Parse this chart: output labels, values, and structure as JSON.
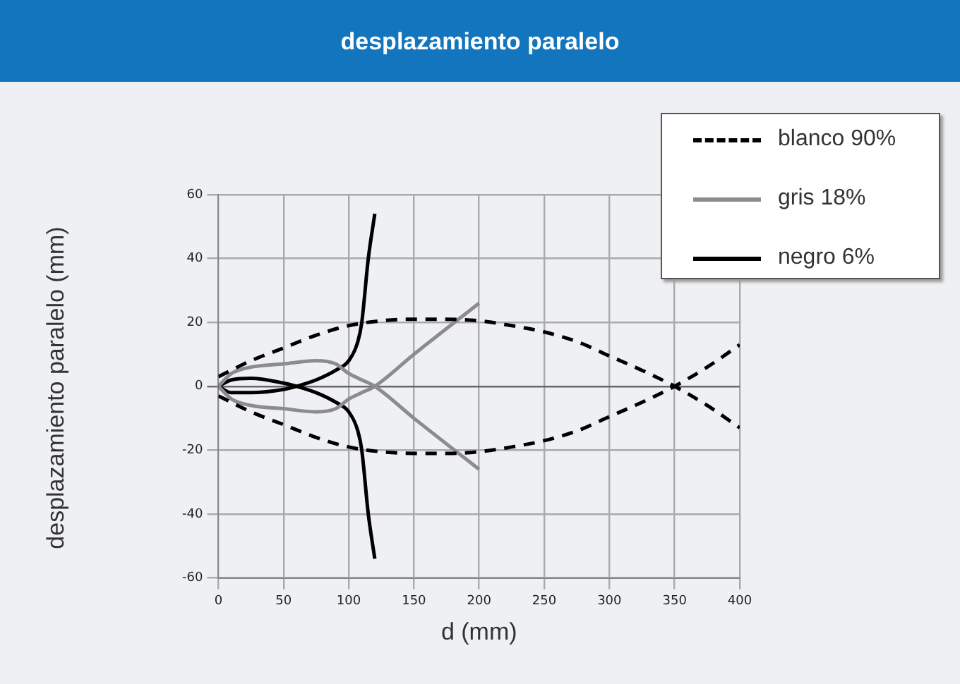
{
  "chart_data": {
    "type": "line",
    "title": "desplazamiento paralelo",
    "xlabel": "d (mm)",
    "ylabel": "desplazamiento paralelo (mm)",
    "xlim": [
      0,
      400
    ],
    "xticks": [
      0,
      50,
      100,
      150,
      200,
      250,
      300,
      350,
      400
    ],
    "ylim": [
      -60,
      60
    ],
    "yticks": [
      -60,
      -40,
      -20,
      0,
      20,
      40,
      60
    ],
    "grid": true,
    "legend": "top right",
    "marker": "none",
    "series": [
      {
        "name": "blanco 90%",
        "color": "#000000",
        "line_style": "dashed",
        "x": [
          0,
          25,
          50,
          75,
          100,
          125,
          150,
          175,
          200,
          225,
          250,
          275,
          300,
          325,
          350,
          375,
          400
        ],
        "values": [
          3,
          8,
          12,
          16,
          19,
          20.5,
          21,
          21,
          20.5,
          19,
          17,
          14,
          9.5,
          5,
          0,
          -6,
          -13
        ]
      },
      {
        "color": "#000000",
        "line_style": "dashed",
        "x": [
          0,
          25,
          50,
          75,
          100,
          125,
          150,
          175,
          200,
          225,
          250,
          275,
          300,
          325,
          350,
          375,
          400
        ],
        "values": [
          -3,
          -8,
          -12,
          -16,
          -19,
          -20.5,
          -21,
          -21,
          -20.5,
          -19,
          -17,
          -14,
          -9.5,
          -5,
          0,
          6,
          13
        ]
      },
      {
        "name": "gris 18%",
        "color": "#8c8c8c",
        "line_style": "solid",
        "x": [
          0,
          10,
          25,
          50,
          75,
          90,
          100,
          110,
          120,
          150,
          200
        ],
        "values": [
          0,
          4,
          6,
          7,
          8,
          7,
          4,
          2,
          0,
          -10,
          -26
        ]
      },
      {
        "color": "#8c8c8c",
        "line_style": "solid",
        "x": [
          0,
          10,
          25,
          50,
          75,
          90,
          100,
          110,
          120,
          150,
          200
        ],
        "values": [
          0,
          -4,
          -6,
          -7,
          -8,
          -7,
          -4,
          -2,
          0,
          10,
          26
        ]
      },
      {
        "name": "negro 6%",
        "color": "#000000",
        "line_style": "solid",
        "x": [
          0,
          10,
          25,
          50,
          60,
          75,
          90,
          100,
          107,
          110,
          115,
          120
        ],
        "values": [
          0,
          -2,
          -2,
          -1,
          0,
          2,
          5,
          8,
          14,
          20,
          40,
          54
        ]
      },
      {
        "color": "#000000",
        "line_style": "solid",
        "x": [
          0,
          10,
          25,
          50,
          60,
          75,
          90,
          100,
          107,
          110,
          115,
          120
        ],
        "values": [
          0,
          2,
          2.5,
          1,
          0,
          -2,
          -5,
          -8,
          -14,
          -20,
          -40,
          -54
        ]
      }
    ]
  }
}
